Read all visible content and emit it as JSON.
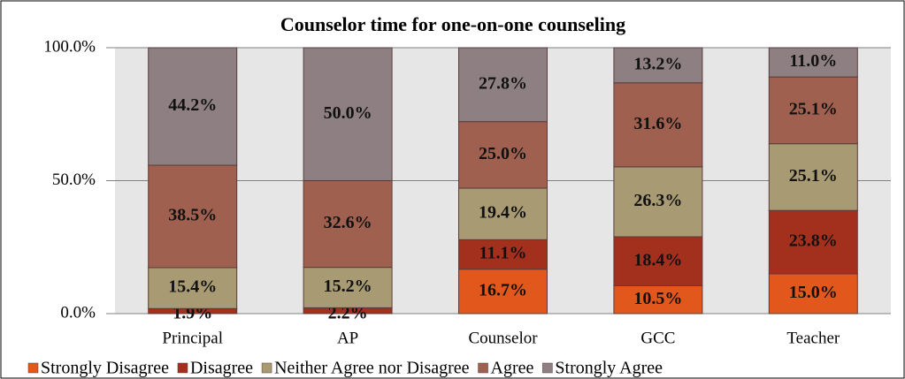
{
  "chart_data": {
    "type": "stacked_bar",
    "title": "Counselor time for one-on-one counseling",
    "categories": [
      "Principal",
      "AP",
      "Counselor",
      "GCC",
      "Teacher"
    ],
    "series": [
      {
        "name": "Strongly Disagree",
        "color": "#e2571c",
        "values": [
          null,
          null,
          16.7,
          10.5,
          15.0
        ],
        "value_labels": [
          null,
          null,
          "16.7%",
          "10.5%",
          "15.0%"
        ]
      },
      {
        "name": "Disagree",
        "color": "#a3301d",
        "values": [
          1.9,
          2.2,
          11.1,
          18.4,
          23.8
        ],
        "value_labels": [
          "1.9%",
          "2.2%",
          "11.1%",
          "18.4%",
          "23.8%"
        ]
      },
      {
        "name": "Neither Agree nor Disagree",
        "color": "#a89a72",
        "values": [
          15.4,
          15.2,
          19.4,
          26.3,
          25.1
        ],
        "value_labels": [
          "15.4%",
          "15.2%",
          "19.4%",
          "26.3%",
          "25.1%"
        ]
      },
      {
        "name": "Agree",
        "color": "#a0604f",
        "values": [
          38.5,
          32.6,
          25.0,
          31.6,
          25.1
        ],
        "value_labels": [
          "38.5%",
          "32.6%",
          "25.0%",
          "31.6%",
          "25.1%"
        ]
      },
      {
        "name": "Strongly Agree",
        "color": "#8e8082",
        "values": [
          44.2,
          50.0,
          27.8,
          13.2,
          11.0
        ],
        "value_labels": [
          "44.2%",
          "50.0%",
          "27.8%",
          "13.2%",
          "11.0%"
        ]
      }
    ],
    "ylim": [
      0,
      100
    ],
    "yticks": [
      {
        "value": 0,
        "label": "0.0%"
      },
      {
        "value": 50,
        "label": "50.0%"
      },
      {
        "value": 100,
        "label": "100.0%"
      }
    ],
    "grid": true,
    "legend": "bottom"
  }
}
